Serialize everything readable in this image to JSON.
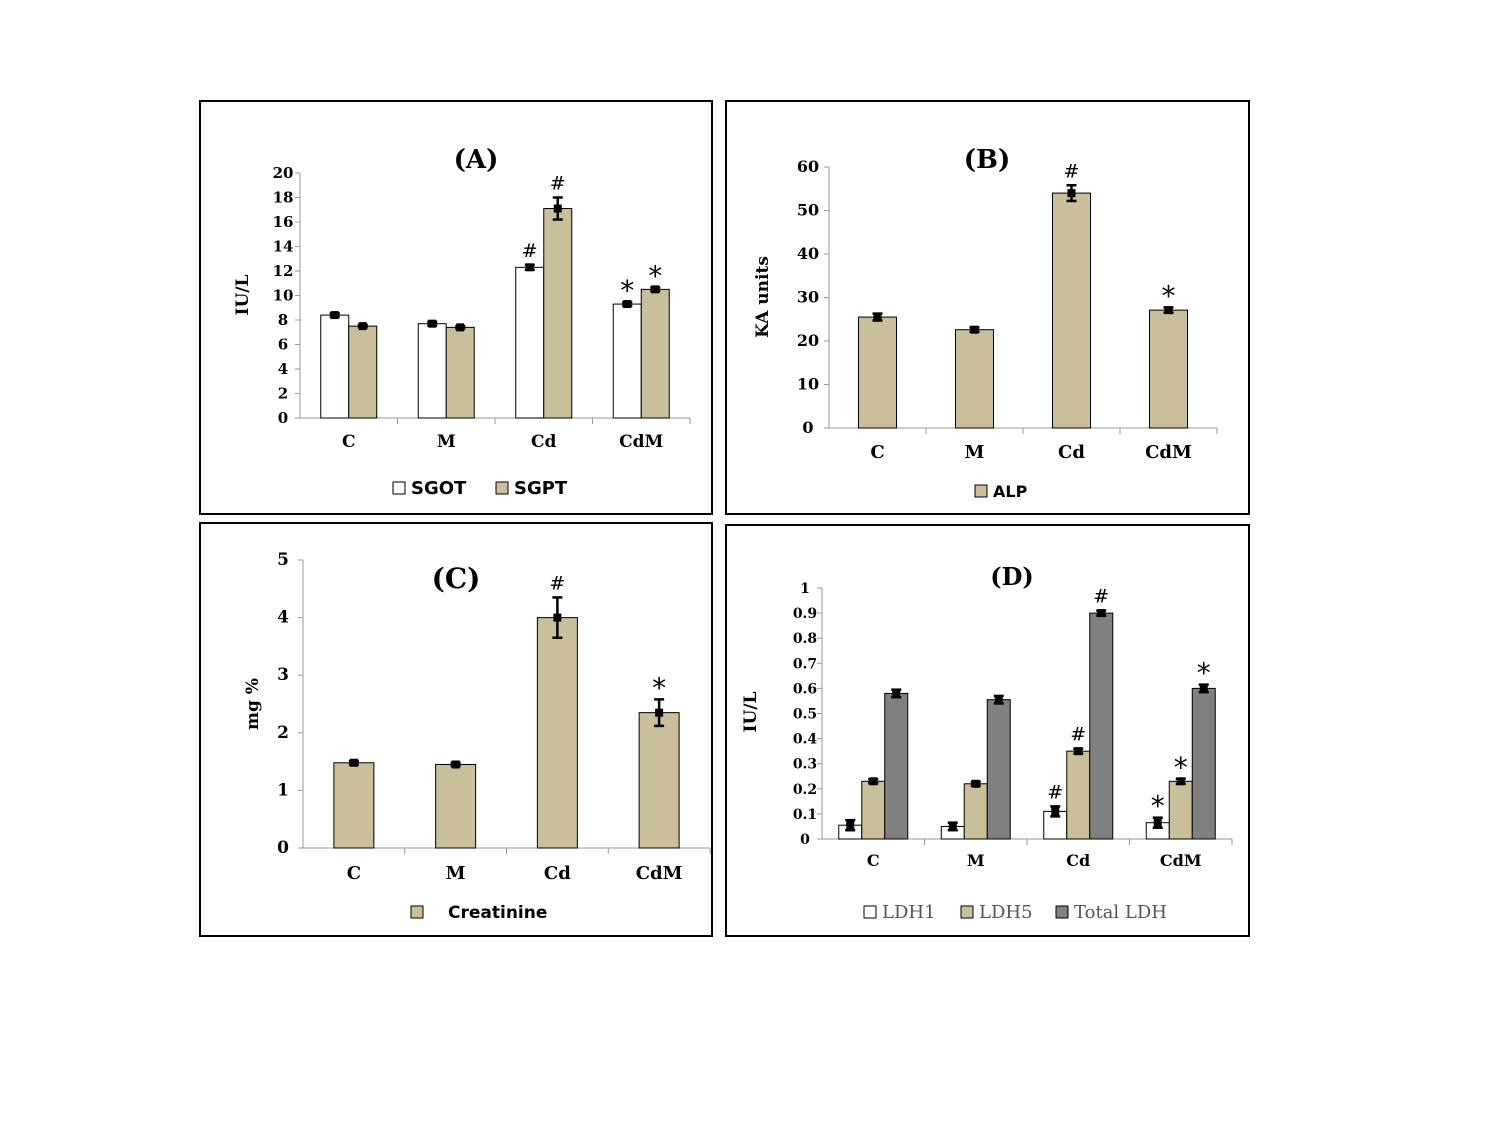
{
  "colors": {
    "white_bar": "#ffffff",
    "tan_bar": "#c9bf9a",
    "gray_bar": "#808080",
    "outline": "#000000"
  },
  "chart_data": [
    {
      "id": "A",
      "type": "bar",
      "title": "(A)",
      "ylabel": "IU/L",
      "xlabel": "",
      "categories": [
        "C",
        "M",
        "Cd",
        "CdM"
      ],
      "ylim": [
        0,
        20
      ],
      "yticks": [
        0,
        2,
        4,
        6,
        8,
        10,
        12,
        14,
        16,
        18,
        20
      ],
      "legend_position": "bottom",
      "series": [
        {
          "name": "SGOT",
          "color": "#ffffff",
          "values": [
            8.4,
            7.7,
            12.3,
            9.3
          ],
          "errors": [
            0.15,
            0.15,
            0.2,
            0.15
          ],
          "annotations": [
            "",
            "",
            "#",
            "*"
          ]
        },
        {
          "name": "SGPT",
          "color": "#c9bf9a",
          "values": [
            7.5,
            7.4,
            17.1,
            10.5
          ],
          "errors": [
            0.1,
            0.1,
            0.9,
            0.15
          ],
          "annotations": [
            "",
            "",
            "#",
            "*"
          ]
        }
      ]
    },
    {
      "id": "B",
      "type": "bar",
      "title": "(B)",
      "ylabel": "KA units",
      "xlabel": "",
      "categories": [
        "C",
        "M",
        "Cd",
        "CdM"
      ],
      "ylim": [
        0,
        60
      ],
      "yticks": [
        0,
        10,
        20,
        30,
        40,
        50,
        60
      ],
      "legend_position": "bottom",
      "series": [
        {
          "name": "ALP",
          "color": "#c9bf9a",
          "values": [
            25.5,
            22.6,
            54,
            27.1
          ],
          "errors": [
            0.8,
            0.5,
            1.8,
            0.6
          ],
          "annotations": [
            "",
            "",
            "#",
            "*"
          ]
        }
      ]
    },
    {
      "id": "C",
      "type": "bar",
      "title": "(C)",
      "ylabel": "mg %",
      "xlabel": "",
      "categories": [
        "C",
        "M",
        "Cd",
        "CdM"
      ],
      "ylim": [
        0,
        5
      ],
      "yticks": [
        0,
        1,
        2,
        3,
        4,
        5
      ],
      "legend_position": "bottom",
      "series": [
        {
          "name": "Creatinine",
          "color": "#c9bf9a",
          "values": [
            1.48,
            1.45,
            4.0,
            2.35
          ],
          "errors": [
            0.03,
            0.03,
            0.35,
            0.23
          ],
          "annotations": [
            "",
            "",
            "#",
            "*"
          ]
        }
      ]
    },
    {
      "id": "D",
      "type": "bar",
      "title": "(D)",
      "ylabel": "IU/L",
      "xlabel": "",
      "categories": [
        "C",
        "M",
        "Cd",
        "CdM"
      ],
      "ylim": [
        0,
        1
      ],
      "yticks": [
        0,
        0.1,
        0.2,
        0.3,
        0.4,
        0.5,
        0.6,
        0.7,
        0.8,
        0.9,
        1
      ],
      "legend_position": "bottom",
      "series": [
        {
          "name": "LDH1",
          "color": "#ffffff",
          "values": [
            0.055,
            0.05,
            0.11,
            0.065
          ],
          "errors": [
            0.02,
            0.015,
            0.02,
            0.02
          ],
          "annotations": [
            "",
            "",
            "#",
            "*"
          ]
        },
        {
          "name": "LDH5",
          "color": "#c9bf9a",
          "values": [
            0.23,
            0.22,
            0.35,
            0.23
          ],
          "errors": [
            0.008,
            0.008,
            0.01,
            0.01
          ],
          "annotations": [
            "",
            "",
            "#",
            "*"
          ]
        },
        {
          "name": "Total LDH",
          "color": "#808080",
          "values": [
            0.58,
            0.555,
            0.9,
            0.6
          ],
          "errors": [
            0.015,
            0.015,
            0.01,
            0.015
          ],
          "annotations": [
            "",
            "",
            "#",
            "*"
          ]
        }
      ]
    }
  ]
}
